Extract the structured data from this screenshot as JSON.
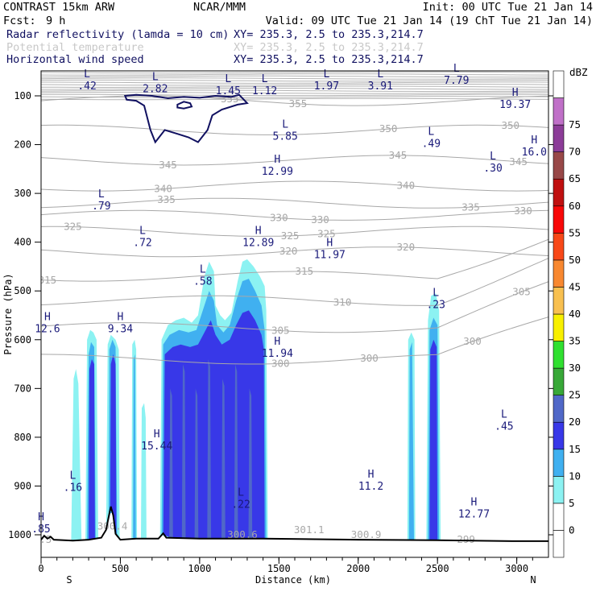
{
  "header": {
    "model": "CONTRAST 15km ARW",
    "fcst_label": "Fcst:",
    "fcst_value": "9 h",
    "org": "NCAR/MMM",
    "init": "Init: 00 UTC Tue 21 Jan 14",
    "valid": "Valid: 09 UTC Tue 21 Jan 14 (19 ChT Tue 21 Jan 14)",
    "fields": [
      {
        "name": "Radar reflectivity (lamda = 10 cm)",
        "xy": "XY= 235.3,  2.5 to 235.3,214.7",
        "color": "#101060"
      },
      {
        "name": "Potential temperature",
        "xy": "XY= 235.3,  2.5 to 235.3,214.7",
        "color": "#c8c8c8"
      },
      {
        "name": "Horizontal wind speed",
        "xy": "XY= 235.3,  2.5 to 235.3,214.7",
        "color": "#101060"
      }
    ]
  },
  "chart_data": {
    "type": "cross-section",
    "xlabel": "Distance (km)",
    "ylabel": "Pressure (hPa)",
    "xlim": [
      0,
      3200
    ],
    "ylim": [
      1050,
      50
    ],
    "x_ticks": [
      0,
      500,
      1000,
      1500,
      2000,
      2500,
      3000
    ],
    "y_ticks": [
      100,
      200,
      300,
      400,
      500,
      600,
      700,
      800,
      900,
      1000
    ],
    "x_end_labels": {
      "left": "S",
      "right": "N"
    },
    "colorbar": {
      "unit": "dBZ",
      "levels": [
        0,
        5,
        10,
        15,
        20,
        25,
        30,
        35,
        40,
        45,
        50,
        55,
        60,
        65,
        70,
        75
      ],
      "colors": [
        "#ffffff",
        "#ffffff",
        "#8cf2f2",
        "#40b0f0",
        "#3838e8",
        "#5068c8",
        "#38a838",
        "#30e030",
        "#f8f000",
        "#f8c050",
        "#f88830",
        "#f84818",
        "#f80808",
        "#c01010",
        "#984848",
        "#8c3c98",
        "#c070c8",
        "#ffffff"
      ]
    },
    "isentropes": [
      {
        "theta": 355,
        "label_x": [
          1190,
          1620
        ]
      },
      {
        "theta": 350,
        "label_x": [
          2190,
          2960
        ]
      },
      {
        "theta": 345,
        "label_x": [
          800,
          2250,
          3010
        ]
      },
      {
        "theta": 340,
        "label_x": [
          770,
          2300
        ]
      },
      {
        "theta": 335,
        "label_x": [
          790,
          2710
        ]
      },
      {
        "theta": 330,
        "label_x": [
          1500,
          1760,
          3040
        ]
      },
      {
        "theta": 325,
        "label_x": [
          200,
          1570,
          1800
        ]
      },
      {
        "theta": 320,
        "label_x": [
          1560,
          2300
        ]
      },
      {
        "theta": 315,
        "label_x": [
          40,
          1660
        ]
      },
      {
        "theta": 310,
        "label_x": [
          1900
        ]
      },
      {
        "theta": 305,
        "label_x": [
          1510,
          3030
        ]
      },
      {
        "theta": 300,
        "label_x": [
          1510,
          2070,
          2720
        ]
      }
    ],
    "lower_labels": [
      {
        "text": "300.4",
        "x": 450,
        "p": 983
      },
      {
        "text": "300.6",
        "x": 1270,
        "p": 1000
      },
      {
        "text": "301.1",
        "x": 1690,
        "p": 990
      },
      {
        "text": "300.9",
        "x": 2050,
        "p": 1000
      },
      {
        "text": "299",
        "x": 2680,
        "p": 1010
      },
      {
        "text": "9.5",
        "x": 10,
        "p": 1010
      }
    ],
    "wind_extrema": [
      {
        "type": "L",
        "value": ".42",
        "x": 290,
        "p": 72
      },
      {
        "type": "L",
        "value": "2.82",
        "x": 720,
        "p": 78
      },
      {
        "type": "L",
        "value": "1.45",
        "x": 1180,
        "p": 82
      },
      {
        "type": "L",
        "value": "1.12",
        "x": 1410,
        "p": 82
      },
      {
        "type": "L",
        "value": "1.97",
        "x": 1800,
        "p": 72
      },
      {
        "type": "L",
        "value": "3.91",
        "x": 2140,
        "p": 72
      },
      {
        "type": "L",
        "value": "7.79",
        "x": 2620,
        "p": 60
      },
      {
        "type": "H",
        "value": "19.37",
        "x": 2990,
        "p": 110
      },
      {
        "type": "L",
        "value": "5.85",
        "x": 1540,
        "p": 175
      },
      {
        "type": "L",
        "value": ".49",
        "x": 2460,
        "p": 190
      },
      {
        "type": "H",
        "value": "16.0",
        "x": 3110,
        "p": 207
      },
      {
        "type": "L",
        "value": ".30",
        "x": 2850,
        "p": 240
      },
      {
        "type": "H",
        "value": "12.99",
        "x": 1490,
        "p": 247
      },
      {
        "type": "L",
        "value": ".79",
        "x": 380,
        "p": 318
      },
      {
        "type": "L",
        "value": ".72",
        "x": 640,
        "p": 393
      },
      {
        "type": "H",
        "value": "12.89",
        "x": 1370,
        "p": 393
      },
      {
        "type": "H",
        "value": "11.97",
        "x": 1820,
        "p": 418
      },
      {
        "type": "L",
        "value": ".58",
        "x": 1020,
        "p": 472
      },
      {
        "type": "L",
        "value": ".23",
        "x": 2490,
        "p": 520
      },
      {
        "type": "H",
        "value": "12.6",
        "x": 40,
        "p": 570
      },
      {
        "type": "H",
        "value": "9.34",
        "x": 500,
        "p": 570
      },
      {
        "type": "H",
        "value": "11.94",
        "x": 1490,
        "p": 620
      },
      {
        "type": "L",
        "value": ".45",
        "x": 2920,
        "p": 770
      },
      {
        "type": "H",
        "value": "15.44",
        "x": 730,
        "p": 810
      },
      {
        "type": "L",
        "value": ".16",
        "x": 200,
        "p": 895
      },
      {
        "type": "H",
        "value": "11.2",
        "x": 2080,
        "p": 893
      },
      {
        "type": "L",
        "value": ".22",
        "x": 1260,
        "p": 930
      },
      {
        "type": "H",
        "value": "12.77",
        "x": 2730,
        "p": 950
      },
      {
        "type": "H",
        "value": ".85",
        "x": 0,
        "p": 980
      }
    ]
  }
}
